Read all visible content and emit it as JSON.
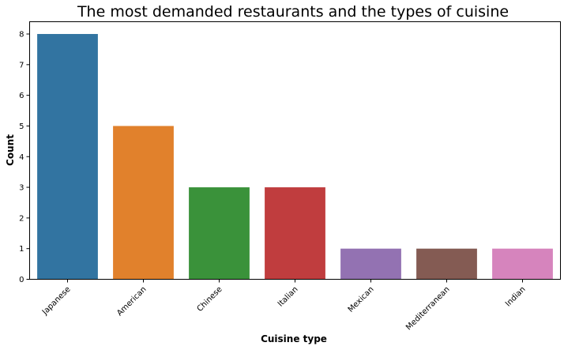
{
  "chart_data": {
    "type": "bar",
    "title": "The most demanded restaurants and the types of cuisine",
    "xlabel": "Cuisine type",
    "ylabel": "Count",
    "categories": [
      "Japanese",
      "American",
      "Chinese",
      "Italian",
      "Mexican",
      "Mediterranean",
      "Indian"
    ],
    "values": [
      8,
      5,
      3,
      3,
      1,
      1,
      1
    ],
    "colors": [
      "#3274a1",
      "#e1812c",
      "#3a923a",
      "#c03d3e",
      "#9372b2",
      "#845b53",
      "#d684bd"
    ],
    "ylim": [
      0,
      8.4
    ],
    "yticks": [
      "0",
      "1",
      "2",
      "3",
      "4",
      "5",
      "6",
      "7",
      "8"
    ],
    "grid": false,
    "legend": "none"
  }
}
